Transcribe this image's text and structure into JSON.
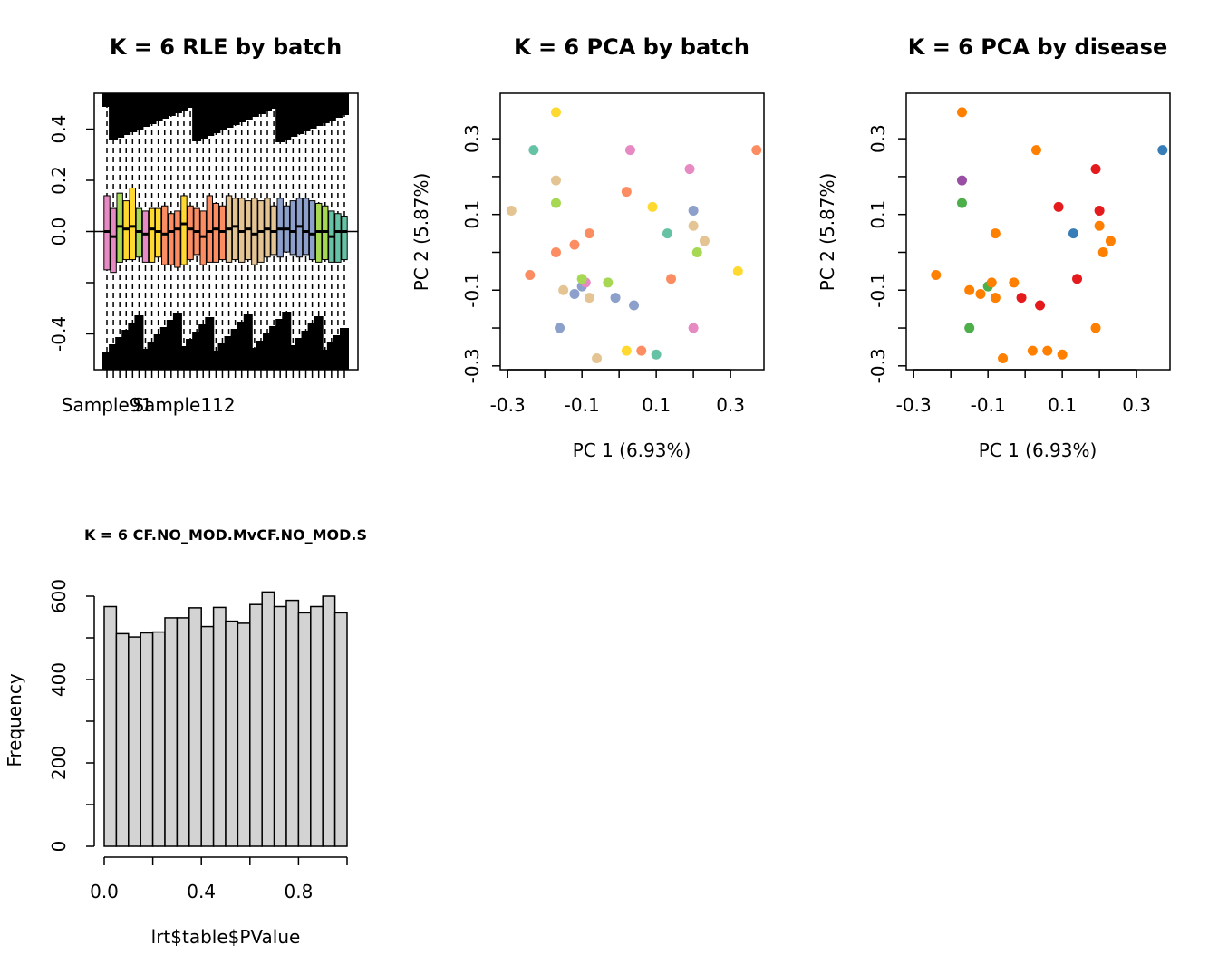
{
  "chart_data": [
    {
      "id": "rle",
      "type": "box",
      "title": "K = 6 RLE by batch",
      "xlabel": "",
      "ylabel": "",
      "ylim": [
        -0.54,
        0.54
      ],
      "yticks": [
        -0.4,
        -0.2,
        0.0,
        0.2,
        0.4
      ],
      "ytick_labels": [
        "-0.4",
        "",
        "0.0",
        "0.2",
        "0.4"
      ],
      "x_tick_labels": [
        {
          "index": 0,
          "label": "Sample91"
        },
        {
          "index": 12,
          "label": "Sample112"
        }
      ],
      "box_colors": [
        "#E78AC3",
        "#E78AC3",
        "#A6D854",
        "#FFD92F",
        "#FFD92F",
        "#A6D854",
        "#E78AC3",
        "#FFD92F",
        "#FFD92F",
        "#FC8D62",
        "#FC8D62",
        "#FC8D62",
        "#FFD92F",
        "#FC8D62",
        "#FC8D62",
        "#FC8D62",
        "#FC8D62",
        "#FC8D62",
        "#FC8D62",
        "#E5C494",
        "#E5C494",
        "#E5C494",
        "#E5C494",
        "#E5C494",
        "#E5C494",
        "#E5C494",
        "#E5C494",
        "#8DA0CB",
        "#8DA0CB",
        "#8DA0CB",
        "#8DA0CB",
        "#8DA0CB",
        "#8DA0CB",
        "#A6D854",
        "#A6D854",
        "#66C2A5",
        "#66C2A5",
        "#66C2A5"
      ],
      "medians": [
        0.0,
        -0.02,
        0.02,
        0.01,
        0.02,
        0.0,
        -0.01,
        0.01,
        0.0,
        -0.01,
        0.0,
        0.01,
        0.03,
        0.01,
        0.0,
        -0.02,
        0.0,
        0.01,
        0.0,
        0.01,
        0.02,
        0.0,
        0.01,
        -0.01,
        0.0,
        0.01,
        0.0,
        0.01,
        0.01,
        0.0,
        0.02,
        0.0,
        -0.01,
        0.0,
        0.0,
        -0.02,
        0.0,
        0.0
      ],
      "q1": [
        -0.15,
        -0.16,
        -0.12,
        -0.11,
        -0.11,
        -0.1,
        -0.12,
        -0.12,
        -0.1,
        -0.13,
        -0.13,
        -0.14,
        -0.13,
        -0.11,
        -0.09,
        -0.13,
        -0.12,
        -0.12,
        -0.11,
        -0.12,
        -0.11,
        -0.12,
        -0.11,
        -0.13,
        -0.12,
        -0.1,
        -0.09,
        -0.1,
        -0.08,
        -0.09,
        -0.1,
        -0.09,
        -0.11,
        -0.12,
        -0.11,
        -0.12,
        -0.12,
        -0.11
      ],
      "q3": [
        0.14,
        0.09,
        0.15,
        0.12,
        0.17,
        0.09,
        0.08,
        0.09,
        0.09,
        0.1,
        0.07,
        0.08,
        0.14,
        0.1,
        0.09,
        0.08,
        0.14,
        0.11,
        0.1,
        0.14,
        0.13,
        0.13,
        0.12,
        0.13,
        0.12,
        0.13,
        0.1,
        0.13,
        0.1,
        0.12,
        0.13,
        0.13,
        0.12,
        0.11,
        0.1,
        0.08,
        0.07,
        0.06
      ],
      "points": [
        {
          "x": -0.29,
          "y": 0.11,
          "color": "#E5C494"
        },
        {
          "x": -0.24,
          "y": -0.06,
          "color": "#FC8D62"
        },
        {
          "x": -0.23,
          "y": 0.27,
          "color": "#66C2A5"
        }
      ]
    },
    {
      "id": "pca_batch",
      "type": "scatter",
      "title": "K = 6 PCA by batch",
      "xlabel": "PC 1 (6.93%)",
      "ylabel": "PC 2 (5.87%)",
      "xlim": [
        -0.32,
        0.39
      ],
      "ylim": [
        -0.31,
        0.42
      ],
      "xticks": [
        -0.3,
        -0.1,
        0.1,
        0.3
      ],
      "xtick_labels": [
        "-0.3",
        "-0.1",
        "0.1",
        "0.3"
      ],
      "yticks": [
        -0.3,
        -0.1,
        0.1,
        0.3
      ],
      "ytick_labels": [
        "-0.3",
        "-0.1",
        "0.1",
        "0.3"
      ],
      "points": [
        {
          "x": -0.29,
          "y": 0.11,
          "color": "#E5C494"
        },
        {
          "x": -0.24,
          "y": -0.06,
          "color": "#FC8D62"
        },
        {
          "x": -0.23,
          "y": 0.27,
          "color": "#66C2A5"
        },
        {
          "x": -0.17,
          "y": 0.37,
          "color": "#FFD92F"
        },
        {
          "x": -0.17,
          "y": 0.19,
          "color": "#E5C494"
        },
        {
          "x": -0.17,
          "y": 0.13,
          "color": "#A6D854"
        },
        {
          "x": -0.17,
          "y": -0.0,
          "color": "#FC8D62"
        },
        {
          "x": -0.16,
          "y": -0.2,
          "color": "#8DA0CB"
        },
        {
          "x": -0.15,
          "y": -0.1,
          "color": "#E5C494"
        },
        {
          "x": -0.12,
          "y": 0.02,
          "color": "#FC8D62"
        },
        {
          "x": -0.12,
          "y": -0.11,
          "color": "#8DA0CB"
        },
        {
          "x": -0.1,
          "y": -0.09,
          "color": "#8DA0CB"
        },
        {
          "x": -0.09,
          "y": -0.08,
          "color": "#E78AC3"
        },
        {
          "x": -0.1,
          "y": -0.07,
          "color": "#A6D854"
        },
        {
          "x": -0.08,
          "y": 0.05,
          "color": "#FC8D62"
        },
        {
          "x": -0.08,
          "y": -0.12,
          "color": "#E5C494"
        },
        {
          "x": -0.06,
          "y": -0.28,
          "color": "#E5C494"
        },
        {
          "x": -0.03,
          "y": -0.08,
          "color": "#A6D854"
        },
        {
          "x": -0.01,
          "y": -0.12,
          "color": "#8DA0CB"
        },
        {
          "x": 0.02,
          "y": 0.16,
          "color": "#FC8D62"
        },
        {
          "x": 0.02,
          "y": -0.26,
          "color": "#FFD92F"
        },
        {
          "x": 0.03,
          "y": 0.27,
          "color": "#E78AC3"
        },
        {
          "x": 0.04,
          "y": -0.14,
          "color": "#8DA0CB"
        },
        {
          "x": 0.06,
          "y": -0.26,
          "color": "#FC8D62"
        },
        {
          "x": 0.09,
          "y": 0.12,
          "color": "#FFD92F"
        },
        {
          "x": 0.1,
          "y": -0.27,
          "color": "#66C2A5"
        },
        {
          "x": 0.13,
          "y": 0.05,
          "color": "#66C2A5"
        },
        {
          "x": 0.14,
          "y": -0.07,
          "color": "#FC8D62"
        },
        {
          "x": 0.19,
          "y": 0.22,
          "color": "#E78AC3"
        },
        {
          "x": 0.2,
          "y": -0.2,
          "color": "#E78AC3"
        },
        {
          "x": 0.2,
          "y": 0.11,
          "color": "#8DA0CB"
        },
        {
          "x": 0.2,
          "y": 0.07,
          "color": "#E5C494"
        },
        {
          "x": 0.21,
          "y": 0.0,
          "color": "#A6D854"
        },
        {
          "x": 0.23,
          "y": 0.03,
          "color": "#E5C494"
        },
        {
          "x": 0.32,
          "y": -0.05,
          "color": "#FFD92F"
        },
        {
          "x": 0.37,
          "y": 0.27,
          "color": "#FC8D62"
        }
      ]
    },
    {
      "id": "pca_disease",
      "type": "scatter",
      "title": "K = 6 PCA by disease",
      "xlabel": "PC 1 (6.93%)",
      "ylabel": "PC 2 (5.87%)",
      "xlim": [
        -0.32,
        0.39
      ],
      "ylim": [
        -0.31,
        0.42
      ],
      "xticks": [
        -0.3,
        -0.1,
        0.1,
        0.3
      ],
      "xtick_labels": [
        "-0.3",
        "-0.1",
        "0.1",
        "0.3"
      ],
      "yticks": [
        -0.3,
        -0.1,
        0.1,
        0.3
      ],
      "ytick_labels": [
        "-0.3",
        "-0.1",
        "0.1",
        "0.3"
      ],
      "points": [
        {
          "x": -0.24,
          "y": -0.06,
          "color": "#FF7F00"
        },
        {
          "x": -0.17,
          "y": 0.37,
          "color": "#FF7F00"
        },
        {
          "x": -0.17,
          "y": 0.19,
          "color": "#984EA3"
        },
        {
          "x": -0.17,
          "y": 0.13,
          "color": "#4DAF4A"
        },
        {
          "x": -0.15,
          "y": -0.1,
          "color": "#FF7F00"
        },
        {
          "x": -0.15,
          "y": -0.2,
          "color": "#4DAF4A"
        },
        {
          "x": -0.12,
          "y": -0.11,
          "color": "#FF7F00"
        },
        {
          "x": -0.1,
          "y": -0.09,
          "color": "#4DAF4A"
        },
        {
          "x": -0.09,
          "y": -0.08,
          "color": "#FF7F00"
        },
        {
          "x": -0.08,
          "y": 0.05,
          "color": "#FF7F00"
        },
        {
          "x": -0.08,
          "y": -0.12,
          "color": "#FF7F00"
        },
        {
          "x": -0.06,
          "y": -0.28,
          "color": "#FF7F00"
        },
        {
          "x": -0.03,
          "y": -0.08,
          "color": "#FF7F00"
        },
        {
          "x": -0.01,
          "y": -0.12,
          "color": "#E41A1C"
        },
        {
          "x": 0.02,
          "y": -0.26,
          "color": "#FF7F00"
        },
        {
          "x": 0.03,
          "y": 0.27,
          "color": "#FF7F00"
        },
        {
          "x": 0.04,
          "y": -0.14,
          "color": "#E41A1C"
        },
        {
          "x": 0.06,
          "y": -0.26,
          "color": "#FF7F00"
        },
        {
          "x": 0.09,
          "y": 0.12,
          "color": "#E41A1C"
        },
        {
          "x": 0.1,
          "y": -0.27,
          "color": "#FF7F00"
        },
        {
          "x": 0.13,
          "y": 0.05,
          "color": "#377EB8"
        },
        {
          "x": 0.14,
          "y": -0.07,
          "color": "#E41A1C"
        },
        {
          "x": 0.19,
          "y": 0.22,
          "color": "#E41A1C"
        },
        {
          "x": 0.19,
          "y": -0.2,
          "color": "#FF7F00"
        },
        {
          "x": 0.2,
          "y": 0.11,
          "color": "#E41A1C"
        },
        {
          "x": 0.2,
          "y": 0.07,
          "color": "#FF7F00"
        },
        {
          "x": 0.21,
          "y": 0.0,
          "color": "#FF7F00"
        },
        {
          "x": 0.23,
          "y": 0.03,
          "color": "#FF7F00"
        },
        {
          "x": 0.37,
          "y": 0.27,
          "color": "#377EB8"
        }
      ]
    },
    {
      "id": "hist",
      "type": "bar",
      "title": "K = 6 CF.NO_MOD.MvCF.NO_MOD.S",
      "xlabel": "lrt$table$PValue",
      "ylabel": "Frequency",
      "xlim": [
        -0.05,
        1.0
      ],
      "ylim": [
        0,
        640
      ],
      "xticks": [
        0.0,
        0.4,
        0.8
      ],
      "xtick_labels": [
        "0.0",
        "0.4",
        "0.8"
      ],
      "xticks_minor": [
        0.2,
        0.6,
        1.0
      ],
      "yticks": [
        0,
        200,
        400,
        600
      ],
      "ytick_labels": [
        "0",
        "200",
        "400",
        "600"
      ],
      "yticks_minor": [
        100,
        300,
        500
      ],
      "bin_width": 0.05,
      "bin_starts": [
        0.0,
        0.05,
        0.1,
        0.15,
        0.2,
        0.25,
        0.3,
        0.35,
        0.4,
        0.45,
        0.5,
        0.55,
        0.6,
        0.65,
        0.7,
        0.75,
        0.8,
        0.85,
        0.9,
        0.95
      ],
      "values": [
        575,
        510,
        502,
        512,
        514,
        548,
        548,
        572,
        527,
        573,
        540,
        535,
        580,
        610,
        575,
        590,
        560,
        575,
        600,
        560
      ],
      "bar_color": "#D3D3D3"
    }
  ]
}
